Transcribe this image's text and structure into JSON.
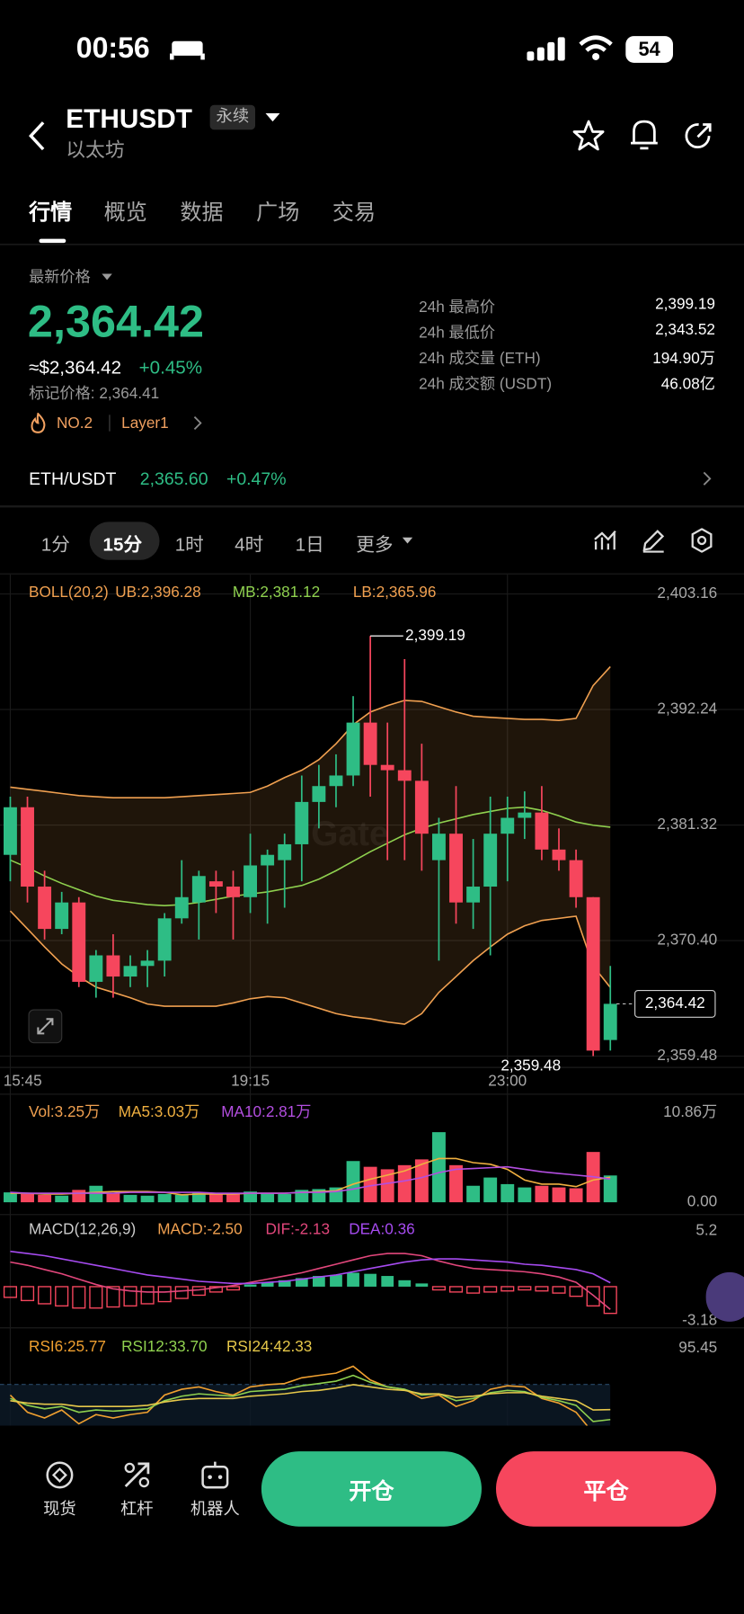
{
  "status_bar": {
    "time": "00:56",
    "battery": "54"
  },
  "header": {
    "symbol": "ETHUSDT",
    "badge": "永续",
    "name": "以太坊"
  },
  "tabs": [
    "行情",
    "概览",
    "数据",
    "广场",
    "交易"
  ],
  "price": {
    "label": "最新价格",
    "last": "2,364.42",
    "usd": "≈$2,364.42",
    "change": "+0.45%",
    "mark": "标记价格: 2,364.41",
    "rank": "NO.2",
    "tag": "Layer1"
  },
  "stats": [
    {
      "label": "24h 最高价",
      "value": "2,399.19"
    },
    {
      "label": "24h 最低价",
      "value": "2,343.52"
    },
    {
      "label": "24h 成交量 (ETH)",
      "value": "194.90万"
    },
    {
      "label": "24h 成交额 (USDT)",
      "value": "46.08亿"
    }
  ],
  "spot": {
    "pair": "ETH/USDT",
    "price": "2,365.60",
    "change": "+0.47%"
  },
  "intervals": [
    "1分",
    "15分",
    "1时",
    "4时",
    "1日",
    "更多"
  ],
  "kline": {
    "up_color": "#2ebd85",
    "down_color": "#f6465d",
    "watermark": "Gate",
    "ylim": [
      2359.48,
      2403.16
    ],
    "yticks": [
      {
        "value": 2403.16,
        "label": "2,403.16"
      },
      {
        "value": 2392.24,
        "label": "2,392.24"
      },
      {
        "value": 2381.32,
        "label": "2,381.32"
      },
      {
        "value": 2370.4,
        "label": "2,370.40"
      },
      {
        "value": 2359.48,
        "label": "2,359.48"
      }
    ],
    "times": [
      "15:45",
      null,
      null,
      null,
      null,
      null,
      null,
      null,
      null,
      null,
      null,
      null,
      null,
      null,
      "19:15",
      null,
      null,
      null,
      null,
      null,
      null,
      null,
      null,
      null,
      null,
      null,
      null,
      null,
      null,
      "23:00",
      null,
      null,
      null,
      null,
      null,
      null
    ],
    "open": [
      2378.5,
      2383,
      2375.5,
      2371.5,
      2374,
      2366.5,
      2369,
      2367,
      2368,
      2368.5,
      2372.5,
      2374,
      2376,
      2375.5,
      2374.5,
      2377.5,
      2378,
      2379.5,
      2383.5,
      2385,
      2386,
      2391,
      2387,
      2386.5,
      2385.5,
      2378,
      2380.5,
      2374,
      2375.5,
      2380.5,
      2382,
      2382.5,
      2379,
      2378,
      2374.5,
      2361
    ],
    "high": [
      2384,
      2384,
      2377,
      2375,
      2374.5,
      2369.5,
      2371,
      2369,
      2369.5,
      2373,
      2378,
      2377,
      2377,
      2377,
      2380.5,
      2379,
      2380.5,
      2386,
      2387,
      2388,
      2393.5,
      2399.19,
      2391,
      2397,
      2389,
      2382,
      2385,
      2380,
      2384,
      2384,
      2384.5,
      2385,
      2381,
      2379,
      2374.5,
      2368
    ],
    "low": [
      2376,
      2374,
      2370.5,
      2371,
      2366,
      2365,
      2365,
      2366,
      2366,
      2367,
      2372,
      2370.5,
      2373,
      2370.5,
      2373,
      2372,
      2373.5,
      2376,
      2381,
      2383,
      2385,
      2384,
      2378,
      2378,
      2377,
      2368.5,
      2372,
      2371.5,
      2369,
      2376,
      2380,
      2378,
      2377,
      2373.5,
      2359.48,
      2360
    ],
    "close": [
      2383,
      2375.5,
      2371.5,
      2374,
      2366.5,
      2369,
      2367,
      2368,
      2368.5,
      2372.5,
      2374.5,
      2376.5,
      2375.5,
      2374.5,
      2377.5,
      2378.5,
      2379.5,
      2383.5,
      2385,
      2386,
      2391,
      2387,
      2386.5,
      2385.5,
      2380.5,
      2380.5,
      2374,
      2375.5,
      2380.5,
      2382,
      2382.5,
      2379,
      2378,
      2374.5,
      2360,
      2364.42
    ],
    "high_label": "2,399.19",
    "low_label": "2,359.48",
    "last_label": "2,364.42",
    "boll": {
      "legend": [
        "BOLL(20,2)",
        "UB:2,396.28",
        "MB:2,381.12",
        "LB:2,365.96"
      ],
      "colors": [
        "#f0a050",
        "#f0a050",
        "#8fd14f",
        "#f0a050"
      ],
      "ub": [
        2384.9,
        2384.7,
        2384.5,
        2384.3,
        2384.1,
        2384.0,
        2383.9,
        2383.9,
        2383.9,
        2383.9,
        2384.0,
        2384.1,
        2384.2,
        2384.3,
        2384.4,
        2385.0,
        2385.8,
        2386.5,
        2387.5,
        2389,
        2390.8,
        2392,
        2392.6,
        2393.1,
        2393,
        2392.5,
        2392,
        2391.6,
        2391.5,
        2391.4,
        2391.3,
        2391.3,
        2391.2,
        2391.4,
        2394.5,
        2396.28
      ],
      "mb": [
        2378,
        2377.3,
        2376.5,
        2375.8,
        2375.2,
        2374.6,
        2374.2,
        2374,
        2373.8,
        2373.7,
        2373.8,
        2374,
        2374.3,
        2374.6,
        2374.8,
        2375,
        2375.3,
        2375.6,
        2376.2,
        2377,
        2377.9,
        2378.8,
        2379.6,
        2380.4,
        2381,
        2381.5,
        2381.9,
        2382.3,
        2382.6,
        2382.9,
        2383,
        2382.7,
        2382.2,
        2381.6,
        2381.3,
        2381.12
      ],
      "lb": [
        2373.2,
        2371.5,
        2369.8,
        2368.2,
        2367,
        2366,
        2365.5,
        2365,
        2364.4,
        2364.2,
        2364.2,
        2364.2,
        2364.2,
        2364.5,
        2364.9,
        2365.1,
        2365,
        2364.5,
        2364,
        2363.5,
        2363.2,
        2363,
        2362.7,
        2362.5,
        2363.5,
        2365.5,
        2367,
        2368.5,
        2369.8,
        2371,
        2371.8,
        2372.3,
        2372.5,
        2372.7,
        2368,
        2365.96
      ]
    },
    "volume": {
      "legend": [
        "Vol:3.25万",
        "MA5:3.03万",
        "MA10:2.81万"
      ],
      "colors": [
        "#f0a050",
        "#f0b040",
        "#b34ee0"
      ],
      "ylim": [
        0,
        10.86
      ],
      "yticks": [
        {
          "value": 10.86,
          "label": "10.86万"
        },
        {
          "value": 0,
          "label": "0.00"
        }
      ],
      "values": [
        1.2,
        1.0,
        0.9,
        0.8,
        1.5,
        2.0,
        1.1,
        0.9,
        0.8,
        1.0,
        0.9,
        1.2,
        1.0,
        1.0,
        1.3,
        1.1,
        1.0,
        1.5,
        1.6,
        1.8,
        5.0,
        4.3,
        4.0,
        4.5,
        5.2,
        8.5,
        4.5,
        2.0,
        3.0,
        2.2,
        1.8,
        2.0,
        1.8,
        1.7,
        6.1,
        3.25
      ],
      "ma5": [
        1.1,
        1.1,
        1.0,
        1.0,
        1.1,
        1.2,
        1.3,
        1.3,
        1.3,
        1.2,
        0.9,
        1.0,
        1.0,
        1.0,
        1.1,
        1.1,
        1.1,
        1.2,
        1.3,
        1.4,
        2.2,
        2.8,
        3.3,
        3.8,
        4.6,
        5.3,
        5.3,
        4.8,
        4.6,
        4.0,
        2.7,
        2.2,
        2.2,
        1.9,
        2.7,
        3.03
      ],
      "ma10": [
        1.2,
        1.1,
        1.1,
        1.1,
        1.1,
        1.1,
        1.1,
        1.2,
        1.2,
        1.2,
        1.2,
        1.2,
        1.1,
        1.1,
        1.1,
        1.1,
        1.1,
        1.2,
        1.2,
        1.3,
        1.6,
        2.0,
        2.3,
        2.6,
        3.0,
        3.6,
        4.0,
        4.1,
        4.2,
        4.3,
        4.0,
        3.7,
        3.5,
        3.3,
        3.1,
        2.81
      ]
    },
    "macd": {
      "legend": [
        "MACD(12,26,9)",
        "MACD:-2.50",
        "DIF:-2.13",
        "DEA:0.36"
      ],
      "colors": [
        "#cccccc",
        "#f0a050",
        "#e2477c",
        "#a64bf0"
      ],
      "ylim": [
        -3.18,
        5.2
      ],
      "yticks": [
        5.2,
        -3.18
      ],
      "hist": [
        -1.0,
        -1.3,
        -1.6,
        -1.8,
        -2.0,
        -2.0,
        -1.9,
        -1.8,
        -1.6,
        -1.4,
        -1.1,
        -0.8,
        -0.5,
        -0.3,
        0.2,
        0.4,
        0.6,
        0.8,
        1.0,
        1.1,
        1.3,
        1.2,
        1.0,
        0.6,
        0.3,
        -0.3,
        -0.5,
        -0.6,
        -0.5,
        -0.4,
        -0.3,
        -0.4,
        -0.6,
        -0.9,
        -1.8,
        -2.5
      ],
      "dif": [
        2.3,
        2.0,
        1.6,
        1.2,
        0.7,
        0.2,
        -0.2,
        -0.4,
        -0.5,
        -0.5,
        -0.4,
        -0.3,
        -0.1,
        0.1,
        0.4,
        0.7,
        1.0,
        1.3,
        1.7,
        2.1,
        2.5,
        2.9,
        3.1,
        3.1,
        2.9,
        2.4,
        2.0,
        1.7,
        1.6,
        1.5,
        1.4,
        1.2,
        0.9,
        0.4,
        -0.8,
        -2.13
      ],
      "dea": [
        3.3,
        3.1,
        2.9,
        2.6,
        2.3,
        2.0,
        1.7,
        1.4,
        1.1,
        0.9,
        0.7,
        0.5,
        0.4,
        0.3,
        0.3,
        0.4,
        0.5,
        0.7,
        0.9,
        1.1,
        1.4,
        1.7,
        2.0,
        2.3,
        2.5,
        2.6,
        2.6,
        2.5,
        2.4,
        2.3,
        2.1,
        2.0,
        1.8,
        1.6,
        1.2,
        0.36
      ]
    },
    "rsi": {
      "legend": [
        "RSI6:25.77",
        "RSI12:33.70",
        "RSI24:42.33"
      ],
      "colors": [
        "#f0a030",
        "#8fd14f",
        "#e6c84a"
      ],
      "ylim": [
        15,
        95.45
      ],
      "yticks": [
        95.45
      ],
      "rsi6": [
        55,
        40,
        35,
        42,
        30,
        38,
        35,
        38,
        40,
        55,
        60,
        62,
        58,
        55,
        62,
        64,
        65,
        70,
        72,
        74,
        80,
        68,
        62,
        60,
        52,
        55,
        45,
        50,
        60,
        63,
        62,
        52,
        48,
        40,
        22,
        25.77
      ],
      "rsi12": [
        52,
        46,
        43,
        45,
        40,
        42,
        41,
        42,
        43,
        50,
        54,
        56,
        55,
        54,
        58,
        59,
        60,
        63,
        65,
        67,
        72,
        66,
        62,
        60,
        55,
        56,
        50,
        52,
        57,
        59,
        58,
        53,
        50,
        46,
        32,
        33.7
      ],
      "rsi24": [
        50,
        48,
        47,
        47,
        45,
        45,
        45,
        45,
        46,
        49,
        51,
        52,
        52,
        52,
        54,
        55,
        56,
        58,
        59,
        61,
        64,
        62,
        60,
        59,
        56,
        56,
        53,
        54,
        56,
        57,
        57,
        54,
        52,
        50,
        42,
        42.33
      ]
    }
  },
  "bottom_nav": [
    "现货",
    "杠杆",
    "机器人"
  ],
  "actions": {
    "open": "开仓",
    "close": "平仓"
  }
}
